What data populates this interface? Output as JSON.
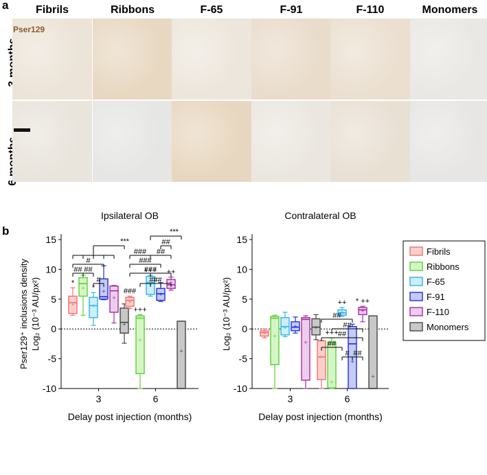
{
  "panels": {
    "a": "a",
    "b": "b"
  },
  "micrographs": {
    "columns": [
      "Fibrils",
      "Ribbons",
      "F-65",
      "F-91",
      "F-110",
      "Monomers"
    ],
    "rows": [
      "3 months",
      "6 months"
    ],
    "marker_label": "Pser129",
    "tile_colors": [
      [
        "#ece4d8",
        "#e8d8c2",
        "#ede6dc",
        "#e9dccb",
        "#ebe0d0",
        "#eae8e4"
      ],
      [
        "#e9e4dc",
        "#e6e6e4",
        "#e8d7c0",
        "#ebe7e0",
        "#e9e0d4",
        "#e7e6e4"
      ]
    ]
  },
  "legend": {
    "items": [
      {
        "label": "Fibrils",
        "color": "#f07070",
        "fill": "#fbd0cc"
      },
      {
        "label": "Ribbons",
        "color": "#5cd036",
        "fill": "#d5f5c6"
      },
      {
        "label": "F-65",
        "color": "#2fb2ea",
        "fill": "#cdeefb"
      },
      {
        "label": "F-91",
        "color": "#1e2fd6",
        "fill": "#c5cbf4"
      },
      {
        "label": "F-110",
        "color": "#a52ba5",
        "fill": "#eccdeb"
      },
      {
        "label": "Monomers",
        "color": "#444444",
        "fill": "#c8c8c8"
      }
    ]
  },
  "chart_data": [
    {
      "type": "box",
      "title": "Ipsilateral OB",
      "xlabel": "Delay post injection (months)",
      "ylabel_line1": "Pser129⁺ inclusions density",
      "ylabel_line2": "Log₂ (10⁻³ AU/px²)",
      "ylim": [
        -10,
        15
      ],
      "yticks": [
        "-10",
        "-5",
        "0",
        "5",
        "10",
        "15"
      ],
      "categories": [
        "3",
        "6"
      ],
      "groups": [
        {
          "x": "3",
          "boxes": [
            {
              "series": "Fibrils",
              "min": 2.3,
              "q1": 2.6,
              "median": 4.4,
              "q3": 5.5,
              "max": 6.9,
              "mean": 4.1,
              "mark": "*"
            },
            {
              "series": "Ribbons",
              "min": 2.3,
              "q1": 5.5,
              "median": 7.6,
              "q3": 8.6,
              "max": 9.0,
              "mean": 6.8,
              "mark": ""
            },
            {
              "series": "F-65",
              "min": 0.6,
              "q1": 1.9,
              "median": 3.9,
              "q3": 5.3,
              "max": 6.1,
              "mean": 3.9,
              "mark": "*"
            },
            {
              "series": "F-91",
              "min": 4.9,
              "q1": 5.0,
              "median": 5.4,
              "q3": 8.4,
              "max": 10.6,
              "mean": 6.3,
              "mark": ""
            },
            {
              "series": "F-110",
              "min": 1.0,
              "q1": 2.8,
              "median": 6.4,
              "q3": 7.2,
              "max": 7.3,
              "mean": 5.2,
              "mark": ""
            },
            {
              "series": "Monomers",
              "min": -2.4,
              "q1": -0.7,
              "median": 1.1,
              "q3": 3.5,
              "max": 4.2,
              "mean": 0.8,
              "mark": ""
            }
          ]
        },
        {
          "x": "6",
          "boxes": [
            {
              "series": "Fibrils",
              "min": 3.4,
              "q1": 3.8,
              "median": 4.8,
              "q3": 5.3,
              "max": 5.5,
              "mean": 4.5,
              "mark": "###"
            },
            {
              "series": "Ribbons",
              "min": -10,
              "q1": -7.5,
              "median": 1.8,
              "q3": 2.2,
              "max": 2.4,
              "mean": -1.9,
              "mark": "+++"
            },
            {
              "series": "F-65",
              "min": 5.5,
              "q1": 5.8,
              "median": 7.8,
              "q3": 8.8,
              "max": 9.0,
              "mean": 7.4,
              "mark": "+++"
            },
            {
              "series": "F-91",
              "min": 4.6,
              "q1": 4.8,
              "median": 5.9,
              "q3": 6.8,
              "max": 7.8,
              "mean": 5.8,
              "mark": ""
            },
            {
              "series": "F-110",
              "min": 6.5,
              "q1": 6.8,
              "median": 7.4,
              "q3": 8.3,
              "max": 8.7,
              "mean": 7.8,
              "mark": "++"
            },
            {
              "series": "Monomers",
              "min": -10,
              "q1": -10,
              "median": -10,
              "q3": 1.3,
              "max": 1.3,
              "mean": -3.7,
              "mark": ""
            }
          ]
        }
      ]
    },
    {
      "type": "box",
      "title": "Contralateral OB",
      "xlabel": "Delay post injection (months)",
      "ylabel_line1": "",
      "ylabel_line2": "Log₂ (10⁻³ AU/px²)",
      "ylim": [
        -10,
        15
      ],
      "yticks": [
        "-10",
        "-5",
        "0",
        "5",
        "10",
        "15"
      ],
      "categories": [
        "3",
        "6"
      ],
      "groups": [
        {
          "x": "3",
          "boxes": [
            {
              "series": "Fibrils",
              "min": -1.5,
              "q1": -1.2,
              "median": -0.6,
              "q3": -0.3,
              "max": 0.0,
              "mean": -0.7,
              "mark": ""
            },
            {
              "series": "Ribbons",
              "min": -10,
              "q1": -6.0,
              "median": 1.8,
              "q3": 2.1,
              "max": 2.3,
              "mean": -1.2,
              "mark": ""
            },
            {
              "series": "F-65",
              "min": -1.3,
              "q1": -1.0,
              "median": 0.4,
              "q3": 1.9,
              "max": 2.8,
              "mean": 0.2,
              "mark": ""
            },
            {
              "series": "F-91",
              "min": -0.7,
              "q1": -0.3,
              "median": 0.3,
              "q3": 1.2,
              "max": 2.0,
              "mean": 0.4,
              "mark": ""
            },
            {
              "series": "F-110",
              "min": -10,
              "q1": -8.6,
              "median": 1.6,
              "q3": 1.9,
              "max": 2.2,
              "mean": -2.3,
              "mark": ""
            },
            {
              "series": "Monomers",
              "min": -1.8,
              "q1": -1.0,
              "median": 0.3,
              "q3": 1.7,
              "max": 2.4,
              "mean": 0.2,
              "mark": ""
            }
          ]
        },
        {
          "x": "6",
          "boxes": [
            {
              "series": "Fibrils",
              "min": -10,
              "q1": -8.5,
              "median": -4.7,
              "q3": -2.0,
              "max": -1.9,
              "mean": -4.7,
              "mark": ""
            },
            {
              "series": "Ribbons",
              "min": -10,
              "q1": -9.9,
              "median": -2.5,
              "q3": -2.2,
              "max": -1.5,
              "mean": -8.9,
              "mark": "+++"
            },
            {
              "series": "F-65",
              "min": 2.1,
              "q1": 2.3,
              "median": 2.7,
              "q3": 3.2,
              "max": 3.6,
              "mean": 2.8,
              "mark": "++"
            },
            {
              "series": "F-91",
              "min": -10,
              "q1": -10,
              "median": -2.5,
              "q3": 0.4,
              "max": 0.8,
              "mean": -5.5,
              "mark": ""
            },
            {
              "series": "F-110",
              "min": 1.2,
              "q1": 2.4,
              "median": 3.2,
              "q3": 3.6,
              "max": 3.8,
              "mean": 3.0,
              "mark": "* ++"
            },
            {
              "series": "Monomers",
              "min": -10,
              "q1": -10,
              "median": -10,
              "q3": 2.2,
              "max": 2.2,
              "mean": -8.0,
              "mark": ""
            }
          ]
        }
      ]
    }
  ],
  "annotations": {
    "ipsi": {
      "m3_brackets": [
        {
          "from": 0,
          "to": 1,
          "label": "##"
        },
        {
          "from": 0,
          "to": 2,
          "label": "##"
        },
        {
          "from": 0,
          "to": 3,
          "label": "#"
        },
        {
          "from": 1,
          "to": 3,
          "label": "#"
        }
      ],
      "m6_brackets": [
        {
          "from": 0,
          "to": 2,
          "label": "###"
        },
        {
          "from": 0,
          "to": 3,
          "label": "###"
        },
        {
          "from": 0,
          "to": 4,
          "label": "###"
        },
        {
          "from": 1,
          "to": 4,
          "label": "###"
        },
        {
          "from": 2,
          "to": 3,
          "label": "#"
        },
        {
          "from": 2,
          "to": 4,
          "label": "##"
        },
        {
          "from": 3,
          "to": 4,
          "label": "##"
        }
      ],
      "monomer_star": "***",
      "hash1": "#",
      "hash2": "##",
      "hash3": "###"
    },
    "contra": {
      "m6_lines": [
        "##",
        "##",
        "##",
        "# ##",
        "##"
      ]
    }
  }
}
